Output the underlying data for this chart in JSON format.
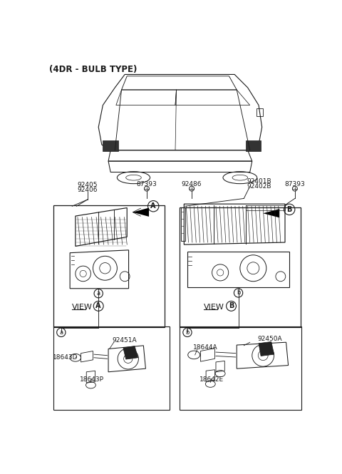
{
  "title": "(4DR - BULB TYPE)",
  "bg_color": "#ffffff",
  "line_color": "#1a1a1a",
  "pn_92405": "92405",
  "pn_92406": "92406",
  "pn_87393": "87393",
  "pn_92486": "92486",
  "pn_92401B": "92401B",
  "pn_92402B": "92402B",
  "pn_87393r": "87393",
  "pn_92451A": "92451A",
  "pn_18643D": "18643D",
  "pn_18643P": "18643P",
  "pn_92450A": "92450A",
  "pn_18644A": "18644A",
  "pn_18642E": "18642E",
  "label_A": "A",
  "label_B": "B",
  "label_a": "a",
  "label_b": "b",
  "view_text": "VIEW"
}
